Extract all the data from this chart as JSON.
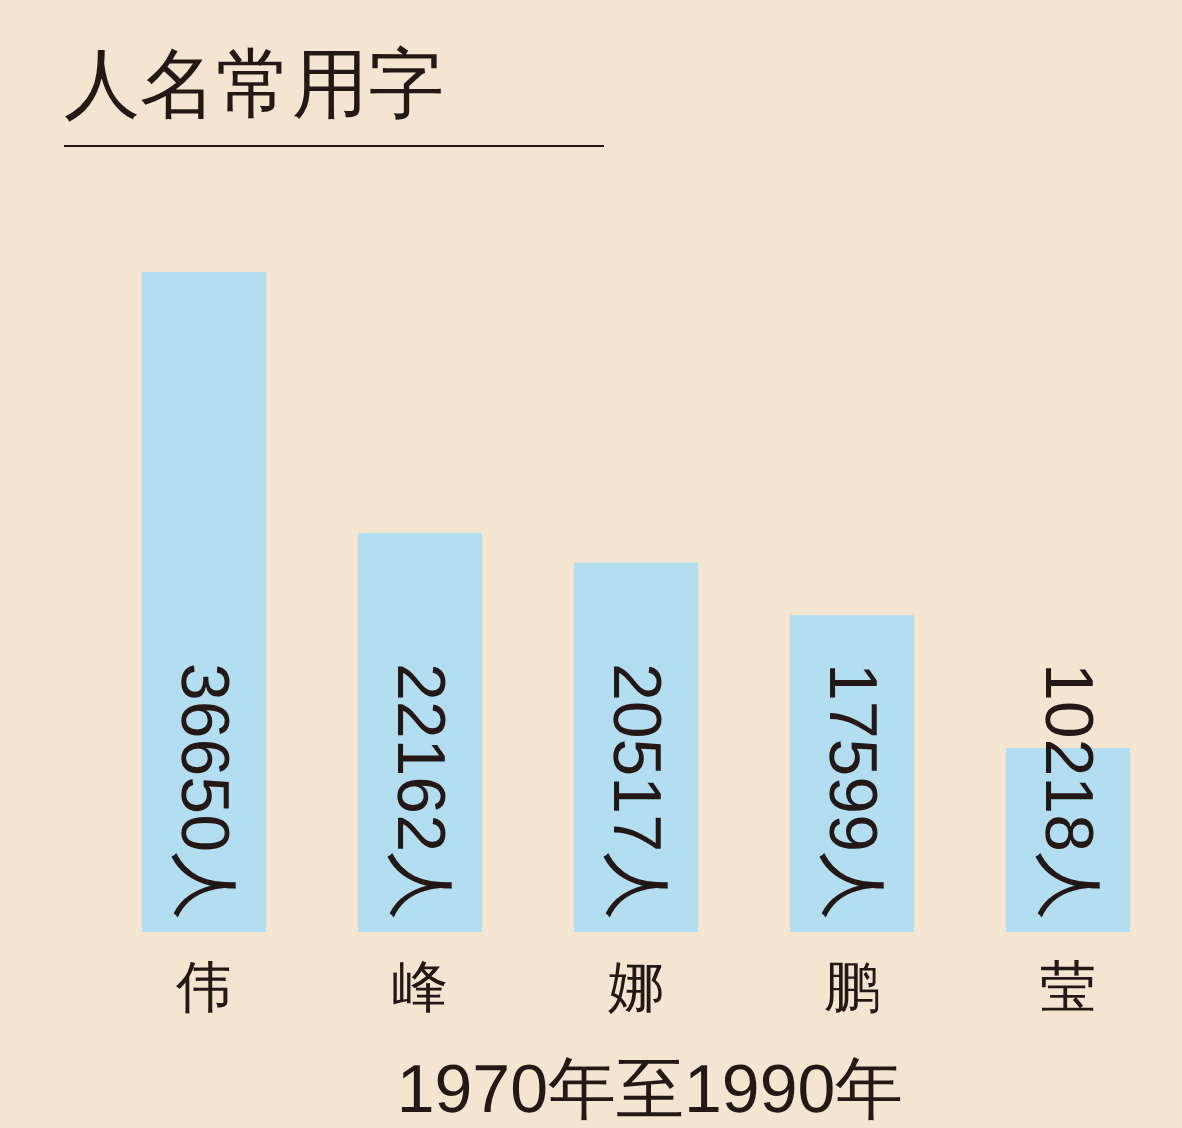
{
  "chart_data": {
    "type": "bar",
    "title": "人名常用字",
    "xlabel": "1970年至1990年",
    "categories": [
      "伟",
      "峰",
      "娜",
      "鹏",
      "莹"
    ],
    "values": [
      36650,
      22162,
      20517,
      17599,
      10218
    ],
    "color": "#b3def2",
    "value_labels": [
      "36650人",
      "22162人",
      "20517人",
      "17599人",
      "10218人"
    ]
  }
}
